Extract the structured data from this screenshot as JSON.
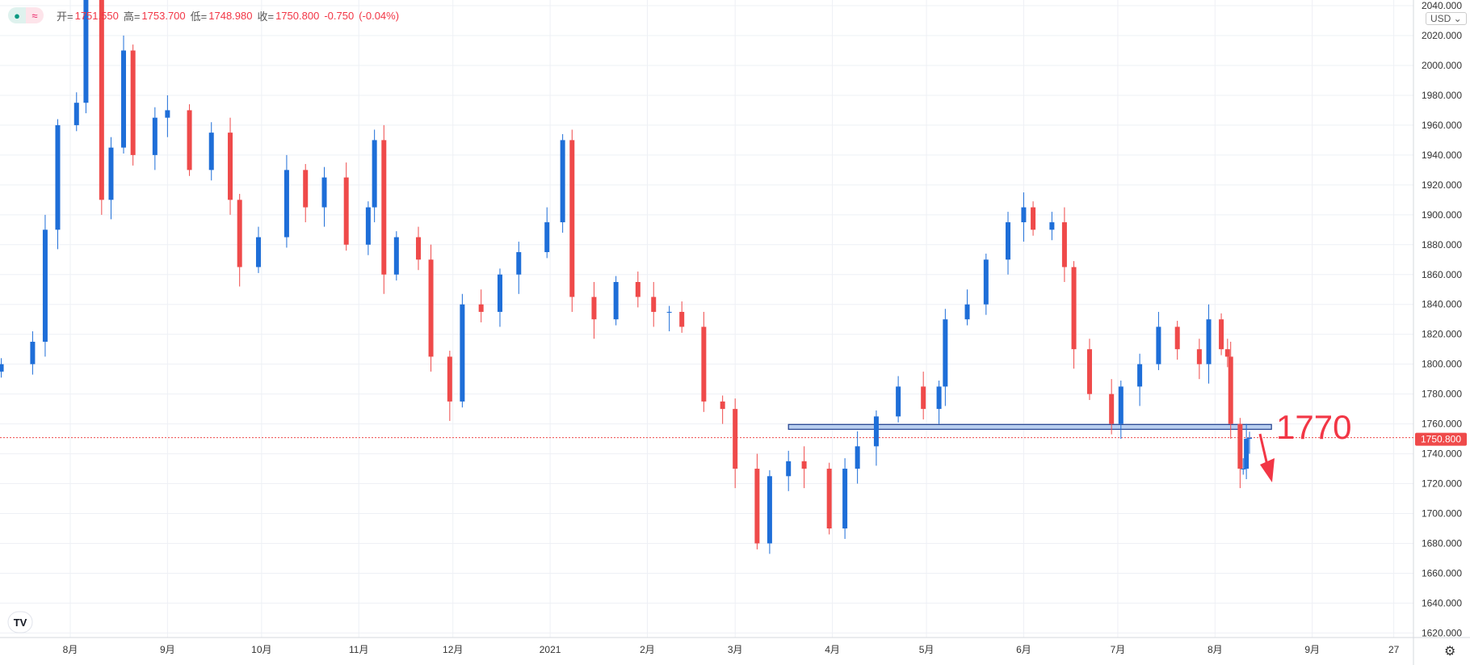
{
  "legend": {
    "open_label": "开=",
    "open": "1751.550",
    "high_label": "高=",
    "high": "1753.700",
    "low_label": "低=",
    "low": "1748.980",
    "close_label": "收=",
    "close": "1750.800",
    "change": "-0.750",
    "change_pct": "(-0.04%)"
  },
  "currency": "USD ⌄",
  "settings_icon": "gear-icon",
  "colors": {
    "up": "#1e6ed8",
    "down": "#ef4a4a",
    "grid": "#eef0f5",
    "level": "#b9cff0",
    "level_border": "#1f3e8c"
  },
  "annotation": {
    "text": "1770",
    "color": "#f23645"
  },
  "chart_data": {
    "type": "candlestick",
    "ylim": [
      1610,
      2045
    ],
    "yticks": [
      1620,
      1640,
      1660,
      1680,
      1700,
      1720,
      1740,
      1760,
      1780,
      1800,
      1820,
      1840,
      1860,
      1880,
      1900,
      1920,
      1940,
      1960,
      1980,
      2000,
      2020,
      2040
    ],
    "xticks": [
      {
        "date": "2020-08-01",
        "label": "8月"
      },
      {
        "date": "2020-09-01",
        "label": "9月"
      },
      {
        "date": "2020-10-01",
        "label": "10月"
      },
      {
        "date": "2020-11-01",
        "label": "11月"
      },
      {
        "date": "2020-12-01",
        "label": "12月"
      },
      {
        "date": "2021-01-01",
        "label": "2021"
      },
      {
        "date": "2021-02-01",
        "label": "2月"
      },
      {
        "date": "2021-03-01",
        "label": "3月"
      },
      {
        "date": "2021-04-01",
        "label": "4月"
      },
      {
        "date": "2021-05-01",
        "label": "5月"
      },
      {
        "date": "2021-06-01",
        "label": "6月"
      },
      {
        "date": "2021-07-01",
        "label": "7月"
      },
      {
        "date": "2021-08-01",
        "label": "8月"
      },
      {
        "date": "2021-09-01",
        "label": "9月"
      },
      {
        "date": "2021-09-27",
        "label": "27"
      }
    ],
    "last_price": "1750.800",
    "level": {
      "price": 1758,
      "from": "2021-03-18",
      "to": "2021-08-19"
    },
    "closes": [
      [
        "2020-07-10",
        1800
      ],
      [
        "2020-07-20",
        1815
      ],
      [
        "2020-07-24",
        1890
      ],
      [
        "2020-07-28",
        1960
      ],
      [
        "2020-08-03",
        1975
      ],
      [
        "2020-08-06",
        2060
      ],
      [
        "2020-08-11",
        1910
      ],
      [
        "2020-08-14",
        1945
      ],
      [
        "2020-08-18",
        2010
      ],
      [
        "2020-08-21",
        1940
      ],
      [
        "2020-08-28",
        1965
      ],
      [
        "2020-09-01",
        1970
      ],
      [
        "2020-09-08",
        1930
      ],
      [
        "2020-09-15",
        1955
      ],
      [
        "2020-09-21",
        1910
      ],
      [
        "2020-09-24",
        1865
      ],
      [
        "2020-09-30",
        1885
      ],
      [
        "2020-10-09",
        1930
      ],
      [
        "2020-10-15",
        1905
      ],
      [
        "2020-10-21",
        1925
      ],
      [
        "2020-10-28",
        1880
      ],
      [
        "2020-11-04",
        1905
      ],
      [
        "2020-11-06",
        1950
      ],
      [
        "2020-11-09",
        1860
      ],
      [
        "2020-11-13",
        1885
      ],
      [
        "2020-11-20",
        1870
      ],
      [
        "2020-11-24",
        1805
      ],
      [
        "2020-11-30",
        1775
      ],
      [
        "2020-12-04",
        1840
      ],
      [
        "2020-12-10",
        1835
      ],
      [
        "2020-12-16",
        1860
      ],
      [
        "2020-12-22",
        1875
      ],
      [
        "2020-12-31",
        1895
      ],
      [
        "2021-01-05",
        1950
      ],
      [
        "2021-01-08",
        1845
      ],
      [
        "2021-01-15",
        1830
      ],
      [
        "2021-01-22",
        1855
      ],
      [
        "2021-01-29",
        1845
      ],
      [
        "2021-02-03",
        1835
      ],
      [
        "2021-02-08",
        1835
      ],
      [
        "2021-02-12",
        1825
      ],
      [
        "2021-02-19",
        1775
      ],
      [
        "2021-02-25",
        1770
      ],
      [
        "2021-03-01",
        1730
      ],
      [
        "2021-03-08",
        1680
      ],
      [
        "2021-03-12",
        1725
      ],
      [
        "2021-03-18",
        1735
      ],
      [
        "2021-03-23",
        1730
      ],
      [
        "2021-03-31",
        1690
      ],
      [
        "2021-04-05",
        1730
      ],
      [
        "2021-04-09",
        1745
      ],
      [
        "2021-04-15",
        1765
      ],
      [
        "2021-04-22",
        1785
      ],
      [
        "2021-04-30",
        1770
      ],
      [
        "2021-05-05",
        1785
      ],
      [
        "2021-05-07",
        1830
      ],
      [
        "2021-05-14",
        1840
      ],
      [
        "2021-05-20",
        1870
      ],
      [
        "2021-05-27",
        1895
      ],
      [
        "2021-06-01",
        1905
      ],
      [
        "2021-06-04",
        1890
      ],
      [
        "2021-06-10",
        1895
      ],
      [
        "2021-06-14",
        1865
      ],
      [
        "2021-06-17",
        1810
      ],
      [
        "2021-06-22",
        1780
      ],
      [
        "2021-06-29",
        1760
      ],
      [
        "2021-07-02",
        1785
      ],
      [
        "2021-07-08",
        1800
      ],
      [
        "2021-07-14",
        1825
      ],
      [
        "2021-07-20",
        1810
      ],
      [
        "2021-07-27",
        1800
      ],
      [
        "2021-07-30",
        1830
      ],
      [
        "2021-08-03",
        1810
      ],
      [
        "2021-08-05",
        1805
      ],
      [
        "2021-08-06",
        1760
      ],
      [
        "2021-08-09",
        1730
      ],
      [
        "2021-08-10",
        1730
      ],
      [
        "2021-08-11",
        1750
      ],
      [
        "2021-08-12",
        1750.8
      ]
    ]
  }
}
